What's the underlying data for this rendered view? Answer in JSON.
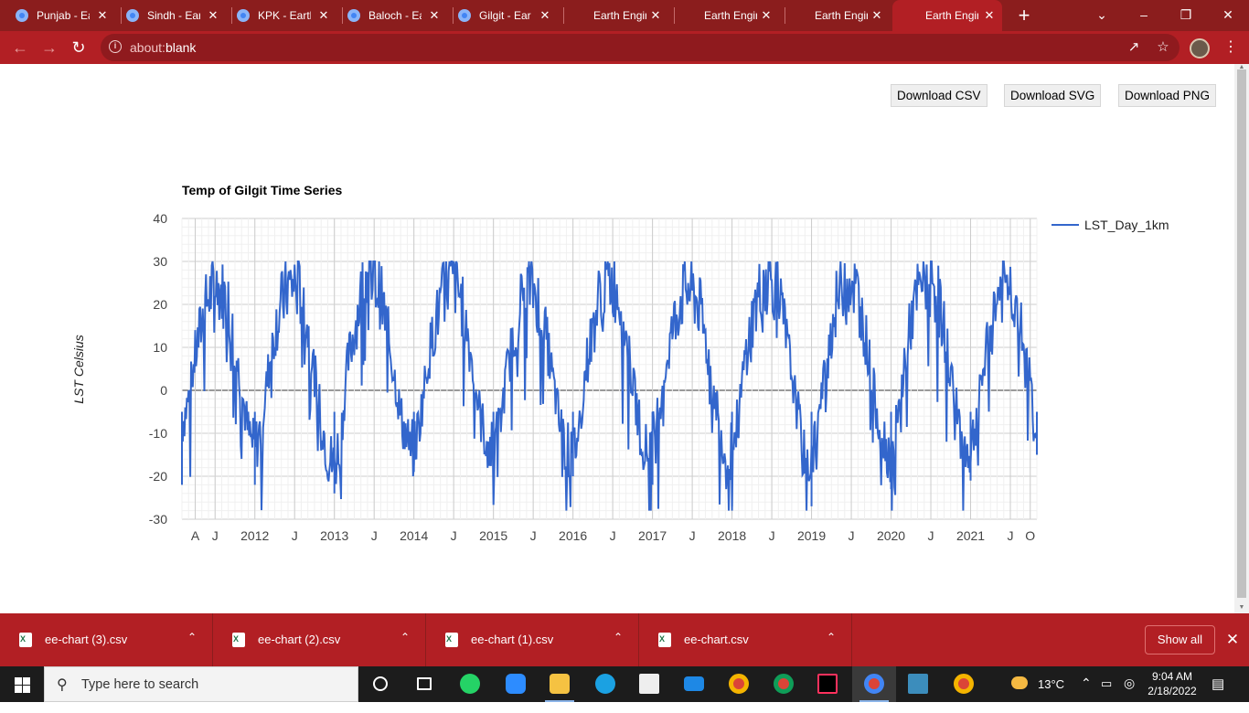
{
  "browser": {
    "tabs": [
      {
        "title": "Punjab - Ea",
        "has_globe": true
      },
      {
        "title": "Sindh - Ear",
        "has_globe": true
      },
      {
        "title": "KPK - Earth",
        "has_globe": true
      },
      {
        "title": "Baloch - Ea",
        "has_globe": true
      },
      {
        "title": "Gilgit - Ear",
        "has_globe": true
      },
      {
        "title": "Earth Engin",
        "has_globe": false
      },
      {
        "title": "Earth Engin",
        "has_globe": false
      },
      {
        "title": "Earth Engin",
        "has_globe": false
      },
      {
        "title": "Earth Engin",
        "has_globe": false,
        "active": true
      }
    ],
    "new_tab_icon": "plus-icon",
    "url_scheme": "about:",
    "url_rest": "blank"
  },
  "page": {
    "buttons": {
      "csv": "Download CSV",
      "svg": "Download SVG",
      "png": "Download PNG"
    }
  },
  "chart_data": {
    "type": "line",
    "title": "Temp of Gilgit Time Series",
    "ylabel": "LST Celsius",
    "xlabel": "",
    "ylim": [
      -30,
      40
    ],
    "yticks": [
      40,
      30,
      20,
      10,
      0,
      -10,
      -20,
      -30
    ],
    "xticks": [
      "A",
      "J",
      "2012",
      "J",
      "2013",
      "J",
      "2014",
      "J",
      "2015",
      "J",
      "2016",
      "J",
      "2017",
      "J",
      "2018",
      "J",
      "2019",
      "J",
      "2020",
      "J",
      "2021",
      "J",
      "O"
    ],
    "x_range": [
      "2011-02",
      "2021-11"
    ],
    "series": [
      {
        "name": "LST_Day_1km",
        "color": "#3366cc",
        "x": [
          "2011-02",
          "2011-03",
          "2011-04",
          "2011-05",
          "2011-06",
          "2011-07",
          "2011-08",
          "2011-09",
          "2011-10",
          "2011-11",
          "2011-12",
          "2012-01",
          "2012-02",
          "2012-03",
          "2012-04",
          "2012-05",
          "2012-06",
          "2012-07",
          "2012-08",
          "2012-09",
          "2012-10",
          "2012-11",
          "2012-12",
          "2013-01",
          "2013-02",
          "2013-03",
          "2013-04",
          "2013-05",
          "2013-06",
          "2013-07",
          "2013-08",
          "2013-09",
          "2013-10",
          "2013-11",
          "2013-12",
          "2014-01",
          "2014-02",
          "2014-03",
          "2014-04",
          "2014-05",
          "2014-06",
          "2014-07",
          "2014-08",
          "2014-09",
          "2014-10",
          "2014-11",
          "2014-12",
          "2015-01",
          "2015-02",
          "2015-03",
          "2015-04",
          "2015-05",
          "2015-06",
          "2015-07",
          "2015-08",
          "2015-09",
          "2015-10",
          "2015-11",
          "2015-12",
          "2016-01",
          "2016-02",
          "2016-03",
          "2016-04",
          "2016-05",
          "2016-06",
          "2016-07",
          "2016-08",
          "2016-09",
          "2016-10",
          "2016-11",
          "2016-12",
          "2017-01",
          "2017-02",
          "2017-03",
          "2017-04",
          "2017-05",
          "2017-06",
          "2017-07",
          "2017-08",
          "2017-09",
          "2017-10",
          "2017-11",
          "2017-12",
          "2018-01",
          "2018-02",
          "2018-03",
          "2018-04",
          "2018-05",
          "2018-06",
          "2018-07",
          "2018-08",
          "2018-09",
          "2018-10",
          "2018-11",
          "2018-12",
          "2019-01",
          "2019-02",
          "2019-03",
          "2019-04",
          "2019-05",
          "2019-06",
          "2019-07",
          "2019-08",
          "2019-09",
          "2019-10",
          "2019-11",
          "2019-12",
          "2020-01",
          "2020-02",
          "2020-03",
          "2020-04",
          "2020-05",
          "2020-06",
          "2020-07",
          "2020-08",
          "2020-09",
          "2020-10",
          "2020-11",
          "2020-12",
          "2021-01",
          "2021-02",
          "2021-03",
          "2021-04",
          "2021-05",
          "2021-06",
          "2021-07",
          "2021-08",
          "2021-09",
          "2021-10",
          "2021-11"
        ],
        "values": [
          -8,
          -2,
          8,
          16,
          22,
          24,
          23,
          20,
          10,
          0,
          -10,
          -14,
          -8,
          4,
          14,
          20,
          24,
          25,
          22,
          14,
          4,
          -6,
          -15,
          -18,
          -10,
          6,
          14,
          22,
          28,
          26,
          22,
          14,
          4,
          -6,
          -12,
          -14,
          -6,
          6,
          14,
          20,
          25,
          26,
          22,
          14,
          4,
          -6,
          -12,
          -14,
          -8,
          4,
          12,
          20,
          24,
          24,
          20,
          12,
          2,
          -8,
          -14,
          -15,
          -8,
          6,
          14,
          22,
          26,
          25,
          22,
          12,
          2,
          -8,
          -14,
          -12,
          -4,
          6,
          14,
          20,
          24,
          23,
          20,
          12,
          2,
          -6,
          -16,
          -14,
          -6,
          8,
          16,
          22,
          26,
          26,
          22,
          14,
          4,
          -6,
          -18,
          -15,
          -8,
          4,
          14,
          22,
          26,
          26,
          22,
          14,
          4,
          -6,
          -12,
          -15,
          -8,
          6,
          16,
          22,
          26,
          26,
          22,
          14,
          4,
          -6,
          -14,
          -14,
          -6,
          6,
          14,
          22,
          24,
          24,
          20,
          10,
          2,
          -10
        ]
      }
    ],
    "min_dips": [
      -22,
      -22,
      -24,
      -19,
      -21,
      -20,
      -22,
      -27,
      -27,
      -23,
      -21,
      -15
    ],
    "legend_position": "right",
    "grid": true
  },
  "downloads": [
    {
      "name": "ee-chart (3).csv"
    },
    {
      "name": "ee-chart (2).csv"
    },
    {
      "name": "ee-chart (1).csv"
    },
    {
      "name": "ee-chart.csv"
    }
  ],
  "download_bar": {
    "show_all": "Show all"
  },
  "taskbar": {
    "search_placeholder": "Type here to search",
    "weather": "13°C",
    "time": "9:04 AM",
    "date": "2/18/2022"
  }
}
